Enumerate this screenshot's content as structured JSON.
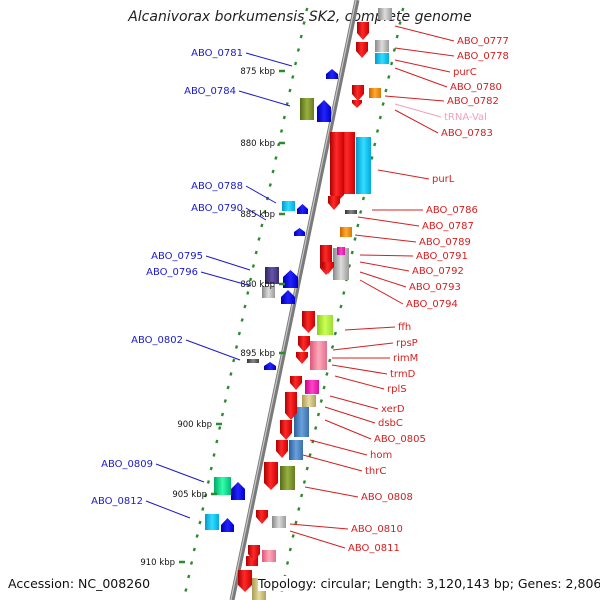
{
  "title": "Alcanivorax borkumensis SK2, complete genome",
  "accession_text": "Accession: NC_008260",
  "topology_text": "Topology: circular; Length: 3,120,143 bp; Genes: 2,806",
  "colors": {
    "left_label": "#1a1acc",
    "right_label": "#d42020",
    "trna_label": "#f0a0c0",
    "backbone": "#808080",
    "tick": "#2d8a2d",
    "minus_arrow": "#0000ee",
    "plus_arrow": "#ee1111"
  },
  "scale_ticks": [
    {
      "label": "875 kbp"
    },
    {
      "label": "880 kbp"
    },
    {
      "label": "885 kbp"
    },
    {
      "label": "890 kbp"
    },
    {
      "label": "895 kbp"
    },
    {
      "label": "900 kbp"
    },
    {
      "label": "905 kbp"
    },
    {
      "label": "910 kbp"
    }
  ],
  "left_labels": [
    {
      "text": "ABO_0781"
    },
    {
      "text": "ABO_0784"
    },
    {
      "text": "ABO_0788"
    },
    {
      "text": "ABO_0790"
    },
    {
      "text": "ABO_0795"
    },
    {
      "text": "ABO_0796"
    },
    {
      "text": "ABO_0802"
    },
    {
      "text": "ABO_0809"
    },
    {
      "text": "ABO_0812"
    }
  ],
  "right_labels": [
    {
      "text": "ABO_0777"
    },
    {
      "text": "ABO_0778"
    },
    {
      "text": "purC"
    },
    {
      "text": "ABO_0780"
    },
    {
      "text": "ABO_0782"
    },
    {
      "text": "tRNA-Val"
    },
    {
      "text": "ABO_0783"
    },
    {
      "text": "purL"
    },
    {
      "text": "ABO_0786"
    },
    {
      "text": "ABO_0787"
    },
    {
      "text": "ABO_0789"
    },
    {
      "text": "ABO_0791"
    },
    {
      "text": "ABO_0792"
    },
    {
      "text": "ABO_0793"
    },
    {
      "text": "ABO_0794"
    },
    {
      "text": "ffh"
    },
    {
      "text": "rpsP"
    },
    {
      "text": "rimM"
    },
    {
      "text": "trmD"
    },
    {
      "text": "rplS"
    },
    {
      "text": "xerD"
    },
    {
      "text": "dsbC"
    },
    {
      "text": "ABO_0805"
    },
    {
      "text": "hom"
    },
    {
      "text": "thrC"
    },
    {
      "text": "ABO_0808"
    },
    {
      "text": "ABO_0810"
    },
    {
      "text": "ABO_0811"
    }
  ]
}
